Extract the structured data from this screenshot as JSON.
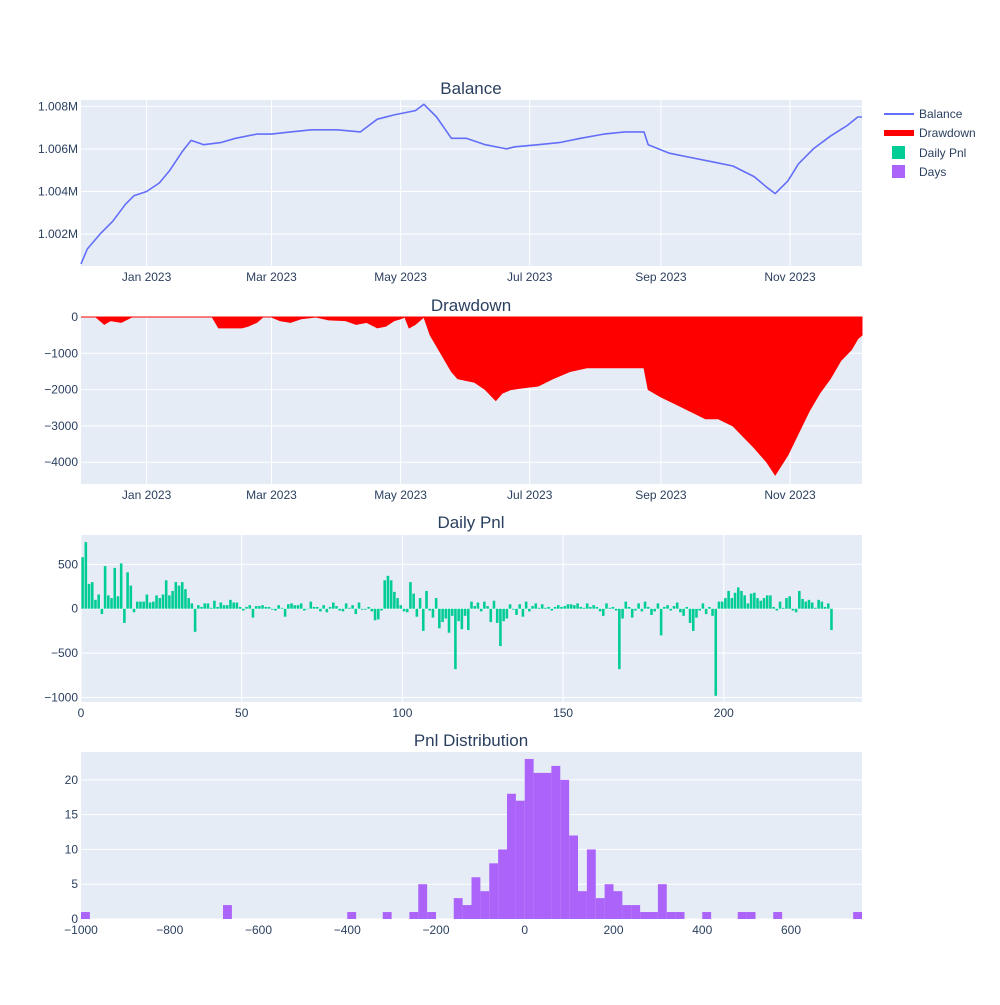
{
  "chart_data": [
    {
      "type": "line",
      "title": "Balance",
      "y_ticks": [
        "1.002M",
        "1.004M",
        "1.006M",
        "1.008M"
      ],
      "x_ticks": [
        "Jan 2023",
        "Mar 2023",
        "May 2023",
        "Jul 2023",
        "Sep 2023",
        "Nov 2023"
      ],
      "x_range": [
        "2022-12-01",
        "2023-12-05"
      ],
      "ylim": [
        1000500,
        1008300
      ],
      "series": [
        {
          "name": "Balance",
          "color": "#636efa",
          "x": [
            "2022-12-01",
            "2022-12-04",
            "2022-12-10",
            "2022-12-16",
            "2022-12-22",
            "2022-12-26",
            "2023-01-01",
            "2023-01-07",
            "2023-01-12",
            "2023-01-18",
            "2023-01-22",
            "2023-01-28",
            "2023-02-05",
            "2023-02-12",
            "2023-02-22",
            "2023-03-01",
            "2023-03-10",
            "2023-03-20",
            "2023-04-01",
            "2023-04-12",
            "2023-04-20",
            "2023-04-28",
            "2023-05-08",
            "2023-05-12",
            "2023-05-18",
            "2023-05-25",
            "2023-06-01",
            "2023-06-10",
            "2023-06-20",
            "2023-06-24",
            "2023-07-05",
            "2023-07-15",
            "2023-07-25",
            "2023-08-05",
            "2023-08-15",
            "2023-08-24",
            "2023-08-26",
            "2023-09-05",
            "2023-09-15",
            "2023-09-25",
            "2023-10-05",
            "2023-10-15",
            "2023-10-21",
            "2023-10-25",
            "2023-10-31",
            "2023-11-05",
            "2023-11-12",
            "2023-11-20",
            "2023-11-28",
            "2023-12-03",
            "2023-12-05"
          ],
          "y": [
            1000600,
            1001300,
            1002000,
            1002600,
            1003400,
            1003800,
            1004000,
            1004400,
            1005000,
            1005900,
            1006400,
            1006200,
            1006300,
            1006500,
            1006700,
            1006700,
            1006800,
            1006900,
            1006900,
            1006800,
            1007400,
            1007600,
            1007800,
            1008100,
            1007500,
            1006500,
            1006500,
            1006200,
            1006000,
            1006100,
            1006200,
            1006300,
            1006500,
            1006700,
            1006800,
            1006800,
            1006200,
            1005800,
            1005600,
            1005400,
            1005200,
            1004700,
            1004200,
            1003900,
            1004500,
            1005300,
            1006000,
            1006600,
            1007100,
            1007500,
            1007500
          ]
        }
      ]
    },
    {
      "type": "area",
      "title": "Drawdown",
      "y_ticks": [
        "0",
        "−1000",
        "−2000",
        "−3000",
        "−4000"
      ],
      "x_ticks": [
        "Jan 2023",
        "Mar 2023",
        "May 2023",
        "Jul 2023",
        "Sep 2023",
        "Nov 2023"
      ],
      "x_range": [
        "2022-12-01",
        "2023-12-05"
      ],
      "ylim": [
        -4600,
        0
      ],
      "series": [
        {
          "name": "Drawdown",
          "color": "#ff0000",
          "x": [
            "2022-12-01",
            "2022-12-08",
            "2022-12-12",
            "2022-12-15",
            "2022-12-20",
            "2022-12-25",
            "2023-01-15",
            "2023-02-01",
            "2023-02-04",
            "2023-02-15",
            "2023-02-18",
            "2023-02-22",
            "2023-02-25",
            "2023-03-01",
            "2023-03-05",
            "2023-03-10",
            "2023-03-15",
            "2023-03-22",
            "2023-03-28",
            "2023-04-05",
            "2023-04-10",
            "2023-04-15",
            "2023-04-20",
            "2023-04-24",
            "2023-04-28",
            "2023-05-01",
            "2023-05-03",
            "2023-05-05",
            "2023-05-08",
            "2023-05-12",
            "2023-05-15",
            "2023-05-20",
            "2023-05-25",
            "2023-05-28",
            "2023-06-01",
            "2023-06-05",
            "2023-06-10",
            "2023-06-15",
            "2023-06-18",
            "2023-06-22",
            "2023-06-28",
            "2023-07-05",
            "2023-07-12",
            "2023-07-20",
            "2023-07-28",
            "2023-08-05",
            "2023-08-15",
            "2023-08-24",
            "2023-08-26",
            "2023-09-01",
            "2023-09-08",
            "2023-09-15",
            "2023-09-22",
            "2023-09-28",
            "2023-10-05",
            "2023-10-10",
            "2023-10-15",
            "2023-10-21",
            "2023-10-25",
            "2023-10-31",
            "2023-11-05",
            "2023-11-10",
            "2023-11-15",
            "2023-11-20",
            "2023-11-25",
            "2023-11-30",
            "2023-12-03",
            "2023-12-05"
          ],
          "y": [
            0,
            0,
            -200,
            -100,
            -150,
            0,
            0,
            0,
            -300,
            -300,
            -250,
            -150,
            0,
            0,
            -100,
            -150,
            -50,
            0,
            -80,
            -100,
            -200,
            -150,
            -300,
            -250,
            -100,
            -50,
            0,
            -300,
            -200,
            0,
            -500,
            -1000,
            -1500,
            -1700,
            -1750,
            -1800,
            -2000,
            -2300,
            -2100,
            -2000,
            -1950,
            -1900,
            -1700,
            -1500,
            -1400,
            -1400,
            -1400,
            -1400,
            -2000,
            -2200,
            -2400,
            -2600,
            -2800,
            -2800,
            -3000,
            -3300,
            -3600,
            -4000,
            -4350,
            -3800,
            -3200,
            -2600,
            -2100,
            -1700,
            -1200,
            -900,
            -600,
            -500
          ]
        }
      ]
    },
    {
      "type": "bar",
      "title": "Daily Pnl",
      "y_ticks": [
        "500",
        "0",
        "−500",
        "−1000"
      ],
      "x_ticks": [
        "0",
        "50",
        "100",
        "150",
        "200"
      ],
      "xlim": [
        0,
        243
      ],
      "ylim": [
        -1050,
        830
      ],
      "series": [
        {
          "name": "Daily Pnl",
          "color": "#00cc96",
          "values": [
            580,
            750,
            280,
            300,
            100,
            160,
            -60,
            480,
            150,
            120,
            460,
            140,
            510,
            -160,
            410,
            260,
            -40,
            80,
            80,
            80,
            160,
            70,
            80,
            150,
            120,
            160,
            320,
            150,
            200,
            300,
            260,
            300,
            220,
            120,
            60,
            -260,
            40,
            20,
            60,
            60,
            10,
            90,
            20,
            70,
            40,
            40,
            100,
            70,
            70,
            20,
            -20,
            20,
            40,
            -100,
            30,
            30,
            40,
            20,
            20,
            -10,
            -20,
            40,
            10,
            -90,
            50,
            60,
            40,
            40,
            60,
            -20,
            0,
            80,
            20,
            20,
            -30,
            40,
            -40,
            20,
            70,
            30,
            -20,
            -30,
            60,
            10,
            40,
            -60,
            70,
            -10,
            -10,
            20,
            -30,
            -130,
            -120,
            -20,
            320,
            370,
            320,
            190,
            120,
            40,
            -30,
            -40,
            300,
            170,
            -90,
            120,
            -250,
            200,
            -20,
            -100,
            120,
            -220,
            -150,
            -110,
            -270,
            -80,
            -680,
            -140,
            -230,
            -80,
            -240,
            80,
            30,
            70,
            -30,
            80,
            30,
            -150,
            90,
            -160,
            -420,
            -140,
            -110,
            50,
            -10,
            -70,
            50,
            -90,
            80,
            -30,
            30,
            60,
            10,
            50,
            10,
            20,
            -20,
            20,
            40,
            20,
            30,
            50,
            50,
            40,
            60,
            20,
            10,
            60,
            20,
            40,
            20,
            -30,
            -80,
            60,
            10,
            20,
            -20,
            -680,
            -110,
            80,
            20,
            -100,
            -20,
            60,
            -30,
            80,
            20,
            -70,
            -30,
            60,
            -300,
            20,
            40,
            -20,
            30,
            70,
            -40,
            -80,
            20,
            -160,
            -250,
            -100,
            -20,
            60,
            -60,
            20,
            -80,
            -980,
            80,
            80,
            120,
            200,
            120,
            180,
            240,
            200,
            150,
            60,
            170,
            180,
            120,
            90,
            120,
            150,
            150,
            20,
            -20,
            80,
            10,
            120,
            140,
            -20,
            -40,
            200,
            110,
            80,
            100,
            70,
            10,
            100,
            80,
            20,
            60,
            -240
          ]
        }
      ]
    },
    {
      "type": "bar",
      "title": "Pnl Distribution",
      "y_ticks": [
        "0",
        "5",
        "10",
        "15",
        "20"
      ],
      "x_ticks": [
        "−1000",
        "−800",
        "−600",
        "−400",
        "−200",
        "0",
        "200",
        "400",
        "600"
      ],
      "xlim": [
        -1000,
        760
      ],
      "ylim": [
        0,
        24
      ],
      "bin_width": 20,
      "series": [
        {
          "name": "Days",
          "color": "#ab63fa",
          "bins": [
            -1000,
            -680,
            -400,
            -320,
            -260,
            -240,
            -220,
            -160,
            -140,
            -120,
            -100,
            -80,
            -60,
            -40,
            -20,
            0,
            20,
            40,
            60,
            80,
            100,
            120,
            140,
            160,
            180,
            200,
            220,
            240,
            260,
            280,
            300,
            320,
            340,
            400,
            480,
            500,
            560,
            740
          ],
          "values": [
            1,
            2,
            1,
            1,
            1,
            5,
            1,
            3,
            2,
            6,
            4,
            8,
            10,
            18,
            17,
            23,
            21,
            21,
            22,
            20,
            12,
            4,
            10,
            3,
            5,
            4,
            2,
            2,
            1,
            1,
            5,
            1,
            1,
            1,
            1,
            1,
            1,
            1
          ]
        }
      ]
    }
  ]
}
